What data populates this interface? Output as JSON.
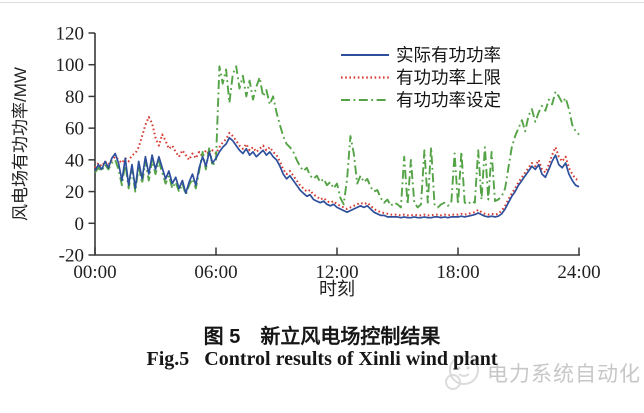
{
  "figure": {
    "caption_zh": "图 5　新立风电场控制结果",
    "caption_en": "Fig.5   Control results of Xinli wind plant"
  },
  "watermark": {
    "text": "电力系统自动化"
  },
  "chart_data": {
    "type": "line",
    "title": "",
    "xlabel": "时刻",
    "ylabel": "风电场有功功率/MW",
    "xlim": [
      0,
      24
    ],
    "ylim": [
      -20,
      120
    ],
    "grid": false,
    "legend_position": "inside-top-right",
    "x_unit": "hour-of-day",
    "sample_interval_minutes": 10,
    "x_ticks": [
      {
        "value": 0,
        "label": "00:00"
      },
      {
        "value": 6,
        "label": "06:00"
      },
      {
        "value": 12,
        "label": "12:00"
      },
      {
        "value": 18,
        "label": "18:00"
      },
      {
        "value": 24,
        "label": "24:00"
      }
    ],
    "y_ticks": [
      -20,
      0,
      20,
      40,
      60,
      80,
      100,
      120
    ],
    "axis_color": "#383838",
    "series": [
      {
        "key": "actual-active-power",
        "name": "实际有功功率",
        "color": "#2d4f9c",
        "style": "solid",
        "values": [
          33,
          37,
          34,
          39,
          35,
          41,
          44,
          38,
          27,
          41,
          24,
          37,
          22,
          39,
          28,
          42,
          31,
          43,
          34,
          42,
          35,
          28,
          33,
          25,
          29,
          22,
          27,
          19,
          26,
          31,
          24,
          35,
          42,
          36,
          45,
          38,
          41,
          45,
          48,
          50,
          54,
          52,
          49,
          46,
          44,
          47,
          43,
          45,
          42,
          44,
          46,
          43,
          45,
          42,
          40,
          36,
          31,
          28,
          30,
          27,
          24,
          21,
          19,
          17,
          18,
          15,
          14,
          13,
          14,
          12,
          11,
          12,
          10,
          9,
          8,
          7,
          8,
          9,
          10,
          11,
          10,
          11,
          9,
          7,
          6,
          5,
          5,
          4,
          4,
          4,
          4,
          3.5,
          4,
          3.5,
          3.5,
          4,
          3.5,
          3.5,
          4,
          3.5,
          3.5,
          4,
          4,
          3.5,
          4,
          3.5,
          4,
          4,
          4,
          4.5,
          4,
          4.5,
          5,
          5.5,
          6.5,
          5.5,
          4.5,
          4,
          4.5,
          4,
          4.5,
          6,
          9,
          13,
          17,
          20,
          24,
          27,
          30,
          33,
          36,
          34,
          37,
          31,
          29,
          34,
          39,
          43,
          37,
          35,
          38,
          31,
          27,
          24,
          23
        ]
      },
      {
        "key": "active-power-upper-limit",
        "name": "有功功率上限",
        "color": "#d43c33",
        "style": "dotted",
        "values": [
          35,
          38,
          36,
          39,
          37,
          40,
          42,
          40,
          38,
          41,
          39,
          43,
          44,
          48,
          55,
          62,
          67,
          63,
          54,
          49,
          56,
          52,
          47,
          49,
          45,
          42,
          46,
          43,
          40,
          44,
          41,
          45,
          42,
          46,
          43,
          46,
          44,
          48,
          51,
          53,
          57,
          55,
          52,
          49,
          47,
          50,
          46,
          48,
          45,
          47,
          49,
          46,
          48,
          45,
          43,
          39,
          34,
          31,
          33,
          30,
          27,
          24,
          22,
          20,
          21,
          18,
          17,
          15,
          16,
          14,
          13,
          14,
          12,
          11,
          10,
          9,
          10,
          11,
          12,
          13,
          12,
          13,
          11,
          9,
          8,
          7,
          6.5,
          6,
          5.5,
          5.5,
          5.5,
          5,
          5.5,
          5,
          5,
          5.5,
          5,
          5,
          5.5,
          5,
          5,
          5.5,
          5.5,
          5,
          5.5,
          5,
          5.5,
          5.5,
          5.5,
          6,
          5.5,
          6,
          6.5,
          7,
          8.5,
          7,
          6,
          5.5,
          6,
          5.5,
          6,
          8,
          11,
          15,
          19,
          22,
          26,
          29,
          32,
          35,
          38,
          36,
          40,
          34,
          32,
          37,
          43,
          48,
          42,
          39,
          42,
          35,
          31,
          28,
          27
        ]
      },
      {
        "key": "active-power-setting",
        "name": "有功功率设定",
        "color": "#55a347",
        "style": "dash-dot",
        "values": [
          32,
          35,
          33,
          37,
          34,
          38,
          40,
          34,
          24,
          38,
          22,
          34,
          20,
          36,
          25,
          39,
          27,
          40,
          31,
          39,
          32,
          25,
          30,
          22,
          26,
          20,
          25,
          18,
          24,
          28,
          22,
          33,
          45,
          34,
          48,
          36,
          40,
          99,
          88,
          97,
          76,
          94,
          99,
          85,
          93,
          80,
          90,
          78,
          86,
          92,
          80,
          84,
          75,
          80,
          70,
          62,
          55,
          50,
          48,
          45,
          40,
          36,
          33,
          35,
          30,
          28,
          30,
          26,
          28,
          24,
          26,
          22,
          25,
          16,
          12,
          28,
          55,
          44,
          25,
          30,
          26,
          28,
          23,
          20,
          21,
          16,
          13,
          15,
          11,
          13,
          12,
          10,
          42,
          12,
          40,
          13,
          10,
          12,
          46,
          13,
          48,
          12,
          10,
          12,
          13,
          11,
          13,
          44,
          12,
          45,
          13,
          12,
          14,
          13,
          46,
          15,
          48,
          15,
          45,
          14,
          15,
          17,
          22,
          35,
          48,
          55,
          60,
          65,
          58,
          68,
          72,
          64,
          70,
          74,
          71,
          78,
          75,
          83,
          80,
          76,
          79,
          72,
          62,
          58,
          56
        ]
      }
    ]
  }
}
